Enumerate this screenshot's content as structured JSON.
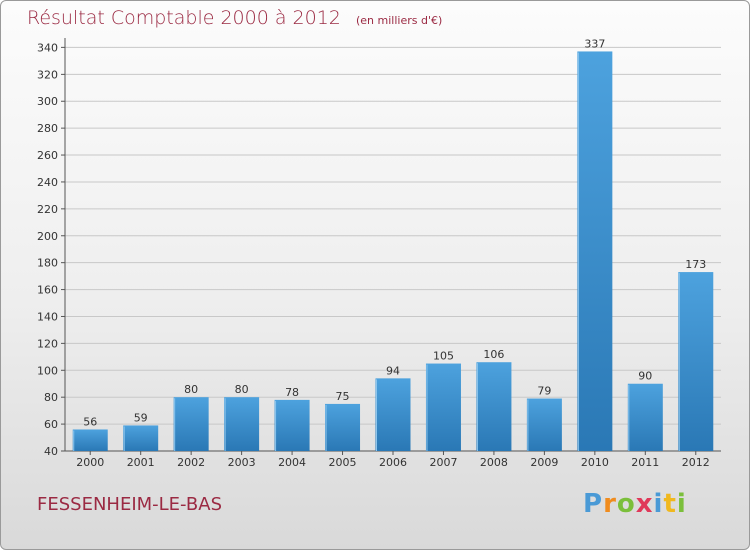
{
  "header": {
    "title": "Résultat Comptable 2000 à 2012",
    "unit": "(en milliers d'€)"
  },
  "footer": {
    "commune": "FESSENHEIM-LE-BAS",
    "logo_letters": [
      "P",
      "r",
      "o",
      "x",
      "i",
      "t",
      "i"
    ],
    "logo_colors": [
      "#4a9ad6",
      "#f08c1e",
      "#7bbf3b",
      "#e0395a",
      "#4a9ad6",
      "#f0b81e",
      "#7bbf3b"
    ]
  },
  "chart_data": {
    "type": "bar",
    "title": "Résultat Comptable 2000 à 2012",
    "subtitle": "(en milliers d'€)",
    "categories": [
      "2000",
      "2001",
      "2002",
      "2003",
      "2004",
      "2005",
      "2006",
      "2007",
      "2008",
      "2009",
      "2010",
      "2011",
      "2012"
    ],
    "values": [
      56,
      59,
      80,
      80,
      78,
      75,
      94,
      105,
      106,
      79,
      337,
      90,
      173
    ],
    "ylim": [
      40,
      340
    ],
    "yticks": [
      40,
      60,
      80,
      100,
      120,
      140,
      160,
      180,
      200,
      220,
      240,
      260,
      280,
      300,
      320,
      340
    ],
    "grid": true,
    "bar_color": "#4da2de",
    "bar_color_dark": "#2a78b5"
  }
}
